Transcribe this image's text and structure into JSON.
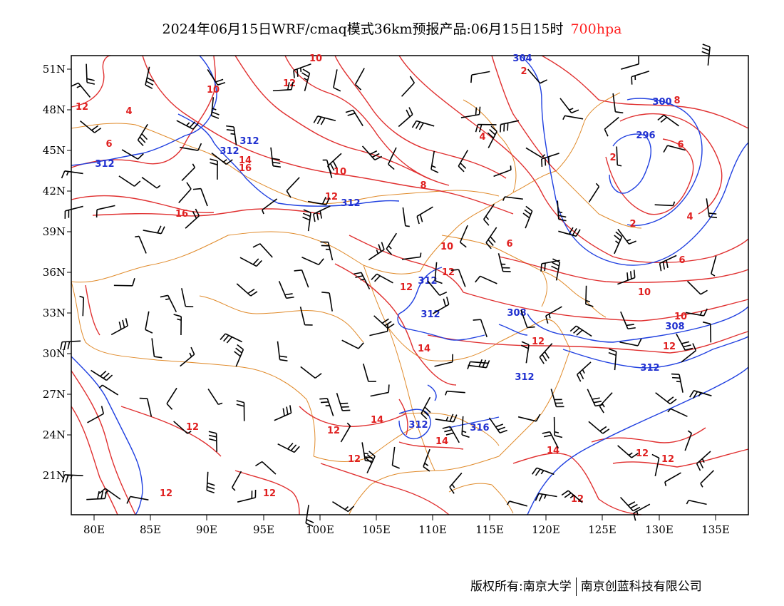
{
  "title": {
    "main": "2024年06月15日WRF/cmaq模式36km预报产品:06月15日15时",
    "level": "700hpa"
  },
  "axes": {
    "lon_labels": [
      "80E",
      "85E",
      "90E",
      "95E",
      "100E",
      "105E",
      "110E",
      "115E",
      "120E",
      "125E",
      "130E",
      "135E"
    ],
    "lat_labels": [
      "51N",
      "48N",
      "45N",
      "42N",
      "39N",
      "36N",
      "33N",
      "30N",
      "27N",
      "24N",
      "21N"
    ]
  },
  "temperature_labels": [
    "10",
    "12",
    "10",
    "2",
    "4",
    "6",
    "12",
    "14",
    "16",
    "10",
    "12",
    "8",
    "4",
    "6",
    "10",
    "12",
    "12",
    "14",
    "12",
    "10",
    "6",
    "2",
    "2",
    "4",
    "6",
    "8",
    "10",
    "12",
    "12",
    "12",
    "14",
    "14",
    "14",
    "12",
    "12",
    "16",
    "12",
    "12",
    "12",
    "12"
  ],
  "height_labels": [
    "304",
    "300",
    "296",
    "312",
    "312",
    "312",
    "312",
    "312",
    "312",
    "308",
    "308",
    "312",
    "312",
    "312",
    "316"
  ],
  "footer": {
    "left": "版权所有:南京大学",
    "right": "南京创蓝科技有限公司"
  },
  "colors": {
    "temperature": "#e02020",
    "height": "#2030d0",
    "boundary": "#e08a2a",
    "wind": "#000000"
  }
}
